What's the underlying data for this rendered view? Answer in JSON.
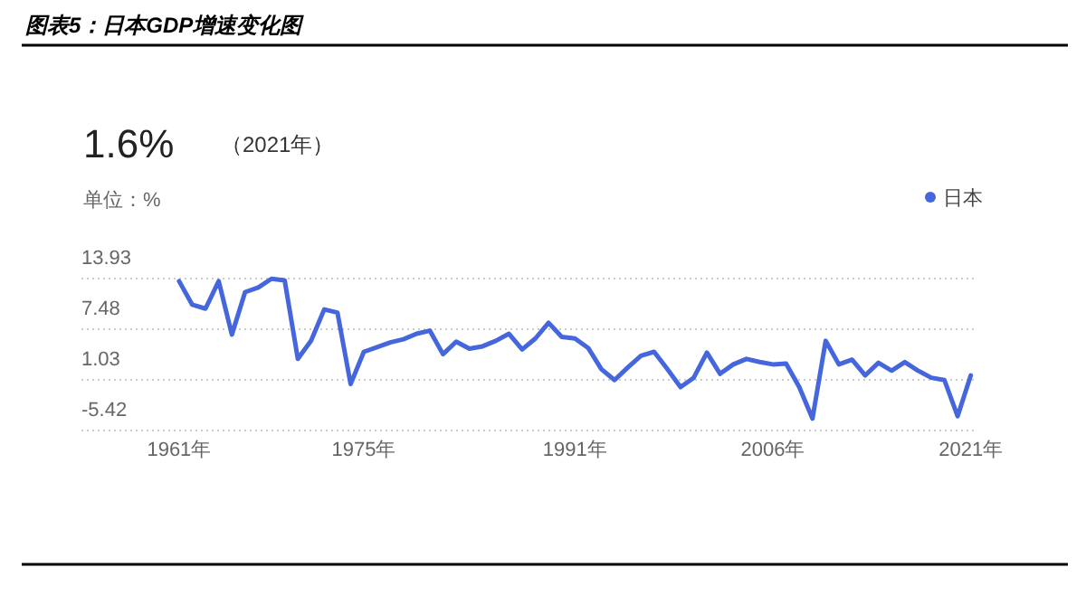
{
  "chart_data": {
    "type": "line",
    "title": "图表5：日本GDP增速变化图",
    "annotations": [
      "1.6%",
      "（2021年）",
      "单位：%"
    ],
    "x": [
      1961,
      1962,
      1963,
      1964,
      1965,
      1966,
      1967,
      1968,
      1969,
      1970,
      1971,
      1972,
      1973,
      1974,
      1975,
      1976,
      1977,
      1978,
      1979,
      1980,
      1981,
      1982,
      1983,
      1984,
      1985,
      1986,
      1987,
      1988,
      1989,
      1990,
      1991,
      1992,
      1993,
      1994,
      1995,
      1996,
      1997,
      1998,
      1999,
      2000,
      2001,
      2002,
      2003,
      2004,
      2005,
      2006,
      2007,
      2008,
      2009,
      2010,
      2011,
      2012,
      2013,
      2014,
      2015,
      2016,
      2017,
      2018,
      2019,
      2020,
      2021
    ],
    "series": [
      {
        "name": "日本",
        "color": "#4566dc",
        "values": [
          13.6,
          10.6,
          10.1,
          13.6,
          6.8,
          12.2,
          12.8,
          13.9,
          13.7,
          3.7,
          6.0,
          10.0,
          9.6,
          0.5,
          4.6,
          5.2,
          5.8,
          6.2,
          6.9,
          7.3,
          4.3,
          5.9,
          5.0,
          5.3,
          6.0,
          6.9,
          4.9,
          6.3,
          8.3,
          6.5,
          6.3,
          5.1,
          2.4,
          1.0,
          2.6,
          4.1,
          4.6,
          2.4,
          0.1,
          1.3,
          4.5,
          1.8,
          3.0,
          3.7,
          3.3,
          3.0,
          3.1,
          0.1,
          -3.9,
          6.0,
          3.0,
          3.6,
          1.6,
          3.2,
          2.2,
          3.3,
          2.2,
          1.3,
          1.0,
          -3.6,
          1.6
        ]
      }
    ],
    "xlim": [
      1953.6,
      2021.5
    ],
    "ylim": [
      -5.42,
      13.93
    ],
    "xticks": [
      {
        "value": 1961,
        "label": "1961年"
      },
      {
        "value": 1975,
        "label": "1975年"
      },
      {
        "value": 1991,
        "label": "1991年"
      },
      {
        "value": 2006,
        "label": "2006年"
      },
      {
        "value": 2021,
        "label": "2021年"
      }
    ],
    "yticks": [
      -5.42,
      1.03,
      7.48,
      13.93
    ],
    "grid": "y",
    "legend": "top right"
  }
}
